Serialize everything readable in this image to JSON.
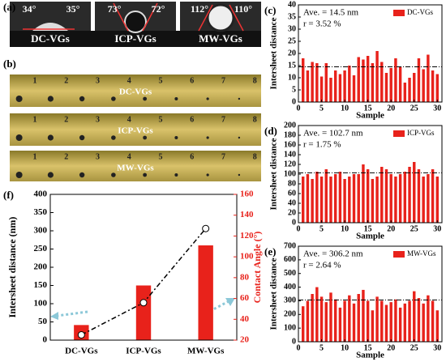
{
  "photos": {
    "a": {
      "label": "(a)",
      "items": [
        {
          "name": "DC-VGs",
          "angles": [
            "34°",
            "35°"
          ]
        },
        {
          "name": "ICP-VGs",
          "angles": [
            "73°",
            "72°"
          ]
        },
        {
          "name": "MW-VGs",
          "angles": [
            "112°",
            "110°"
          ]
        }
      ]
    },
    "b": {
      "label": "(b)",
      "frames": [
        "1",
        "2",
        "3",
        "4",
        "5",
        "6",
        "7",
        "8"
      ],
      "rows": [
        "DC-VGs",
        "ICP-VGs",
        "MW-VGs"
      ]
    }
  },
  "chart_data": [
    {
      "type": "bar",
      "panel_label": "(c)",
      "y_label": "Intersheet distance",
      "x_label": "Sample",
      "annotations": [
        "Ave. = 14.5 nm",
        "r = 3.52 %"
      ],
      "hline": 14.5,
      "series": [
        {
          "name": "DC-VGs",
          "color": "#e8221b",
          "values": [
            18,
            13,
            16.5,
            16,
            10.5,
            16,
            10,
            13,
            11.5,
            13,
            15,
            11,
            18.5,
            17.5,
            19,
            16,
            21,
            16.5,
            12,
            14,
            18,
            14.5,
            8,
            10,
            12,
            18,
            13.5,
            19.5,
            13,
            11.5
          ]
        }
      ],
      "x": [
        1,
        2,
        3,
        4,
        5,
        6,
        7,
        8,
        9,
        10,
        11,
        12,
        13,
        14,
        15,
        16,
        17,
        18,
        19,
        20,
        21,
        22,
        23,
        24,
        25,
        26,
        27,
        28,
        29,
        30
      ],
      "xlim": [
        0,
        31
      ],
      "xticks": [
        0,
        5,
        10,
        15,
        20,
        25,
        30
      ],
      "ylim": [
        0,
        40
      ],
      "yticks": [
        0,
        5,
        10,
        15,
        20,
        25,
        30,
        35,
        40
      ]
    },
    {
      "type": "bar",
      "panel_label": "(d)",
      "y_label": "Intersheet distance",
      "x_label": "Sample",
      "annotations": [
        "Ave. = 102.7 nm",
        "r = 1.75 %"
      ],
      "hline": 102.7,
      "series": [
        {
          "name": "ICP-VGs",
          "color": "#e8221b",
          "values": [
            95,
            100,
            90,
            105,
            95,
            110,
            95,
            100,
            105,
            90,
            95,
            100,
            100,
            120,
            110,
            90,
            95,
            115,
            110,
            100,
            95,
            100,
            105,
            115,
            125,
            110,
            95,
            100,
            110,
            95
          ]
        }
      ],
      "x": [
        1,
        2,
        3,
        4,
        5,
        6,
        7,
        8,
        9,
        10,
        11,
        12,
        13,
        14,
        15,
        16,
        17,
        18,
        19,
        20,
        21,
        22,
        23,
        24,
        25,
        26,
        27,
        28,
        29,
        30
      ],
      "xlim": [
        0,
        31
      ],
      "xticks": [
        0,
        5,
        10,
        15,
        20,
        25,
        30
      ],
      "ylim": [
        0,
        200
      ],
      "yticks": [
        0,
        20,
        40,
        60,
        80,
        100,
        120,
        140,
        160,
        180,
        200
      ]
    },
    {
      "type": "bar",
      "panel_label": "(e)",
      "y_label": "Intersheet distance",
      "x_label": "Sample",
      "annotations": [
        "Ave. = 306.2 nm",
        "r = 2.64 %"
      ],
      "hline": 306.2,
      "series": [
        {
          "name": "MW-VGs",
          "color": "#e8221b",
          "values": [
            260,
            300,
            350,
            400,
            330,
            290,
            360,
            310,
            250,
            300,
            340,
            280,
            350,
            380,
            300,
            230,
            330,
            300,
            270,
            290,
            310,
            250,
            280,
            300,
            370,
            320,
            280,
            340,
            300,
            230
          ]
        }
      ],
      "x": [
        1,
        2,
        3,
        4,
        5,
        6,
        7,
        8,
        9,
        10,
        11,
        12,
        13,
        14,
        15,
        16,
        17,
        18,
        19,
        20,
        21,
        22,
        23,
        24,
        25,
        26,
        27,
        28,
        29,
        30
      ],
      "xlim": [
        0,
        31
      ],
      "xticks": [
        0,
        5,
        10,
        15,
        20,
        25,
        30
      ],
      "ylim": [
        0,
        700
      ],
      "yticks": [
        0,
        100,
        200,
        300,
        400,
        500,
        600,
        700
      ]
    },
    {
      "type": "combo",
      "panel_label": "(f)",
      "y_label": "Intersheet distance (nm)",
      "y2_label": "Contact Angle (°)",
      "categories": [
        "DC-VGs",
        "ICP-VGs",
        "MW-VGs"
      ],
      "series": [
        {
          "kind": "line",
          "color": "#000000",
          "values": [
            14.5,
            102.7,
            306.2
          ]
        },
        {
          "kind": "bar",
          "axis": "y2",
          "color": "#e8221b",
          "values": [
            34.5,
            72.5,
            111
          ]
        }
      ],
      "ylim": [
        0,
        400
      ],
      "yticks": [
        0,
        50,
        100,
        150,
        200,
        250,
        300,
        350,
        400
      ],
      "y2lim": [
        20,
        160
      ],
      "y2ticks": [
        20,
        40,
        60,
        80,
        100,
        120,
        140,
        160
      ]
    }
  ]
}
